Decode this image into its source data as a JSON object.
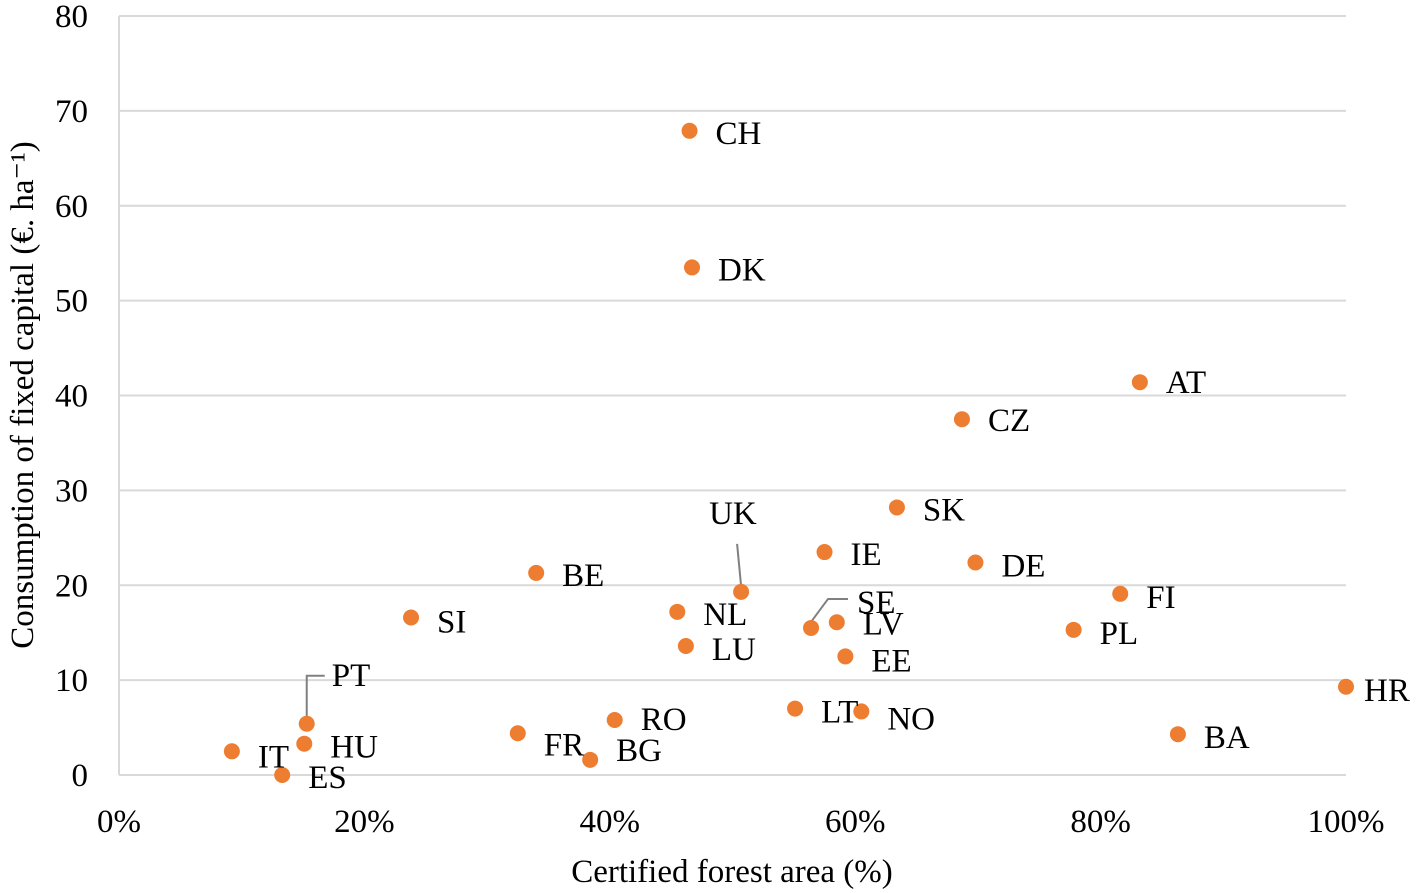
{
  "colors": {
    "marker": "#ED7D31",
    "grid": "#D9D9D9",
    "leader": "#808080"
  },
  "chart_data": {
    "type": "scatter",
    "title": "",
    "xlabel": "Certified forest area (%)",
    "ylabel": "Consumption of fixed capital (€. ha⁻¹)",
    "xlim": [
      0,
      100
    ],
    "ylim": [
      0,
      80
    ],
    "x_ticks": [
      "0%",
      "20%",
      "40%",
      "60%",
      "80%",
      "100%"
    ],
    "y_ticks": [
      "0",
      "10",
      "20",
      "30",
      "40",
      "50",
      "60",
      "70",
      "80"
    ],
    "grid": "horizontal",
    "points": [
      {
        "label": "CH",
        "x": 46.5,
        "y": 67.9
      },
      {
        "label": "DK",
        "x": 46.7,
        "y": 53.5
      },
      {
        "label": "AT",
        "x": 83.2,
        "y": 41.4
      },
      {
        "label": "CZ",
        "x": 68.7,
        "y": 37.5
      },
      {
        "label": "SK",
        "x": 63.4,
        "y": 28.2
      },
      {
        "label": "IE",
        "x": 57.5,
        "y": 23.5
      },
      {
        "label": "DE",
        "x": 69.8,
        "y": 22.4
      },
      {
        "label": "BE",
        "x": 34.0,
        "y": 21.3
      },
      {
        "label": "UK",
        "x": 50.7,
        "y": 19.3
      },
      {
        "label": "FI",
        "x": 81.6,
        "y": 19.1
      },
      {
        "label": "NL",
        "x": 45.5,
        "y": 17.2
      },
      {
        "label": "SI",
        "x": 23.8,
        "y": 16.6
      },
      {
        "label": "SE",
        "x": 56.4,
        "y": 15.5
      },
      {
        "label": "LV",
        "x": 58.5,
        "y": 16.1
      },
      {
        "label": "PL",
        "x": 77.8,
        "y": 15.3
      },
      {
        "label": "LU",
        "x": 46.2,
        "y": 13.6
      },
      {
        "label": "EE",
        "x": 59.2,
        "y": 12.5
      },
      {
        "label": "HR",
        "x": 100.0,
        "y": 9.3
      },
      {
        "label": "LT",
        "x": 55.1,
        "y": 7.0
      },
      {
        "label": "NO",
        "x": 60.5,
        "y": 6.7
      },
      {
        "label": "PT",
        "x": 15.3,
        "y": 5.4
      },
      {
        "label": "RO",
        "x": 40.4,
        "y": 5.8
      },
      {
        "label": "FR",
        "x": 32.5,
        "y": 4.4
      },
      {
        "label": "BA",
        "x": 86.3,
        "y": 4.3
      },
      {
        "label": "HU",
        "x": 15.1,
        "y": 3.3
      },
      {
        "label": "IT",
        "x": 9.2,
        "y": 2.5
      },
      {
        "label": "BG",
        "x": 38.4,
        "y": 1.6
      },
      {
        "label": "ES",
        "x": 13.3,
        "y": 0.0
      }
    ]
  }
}
